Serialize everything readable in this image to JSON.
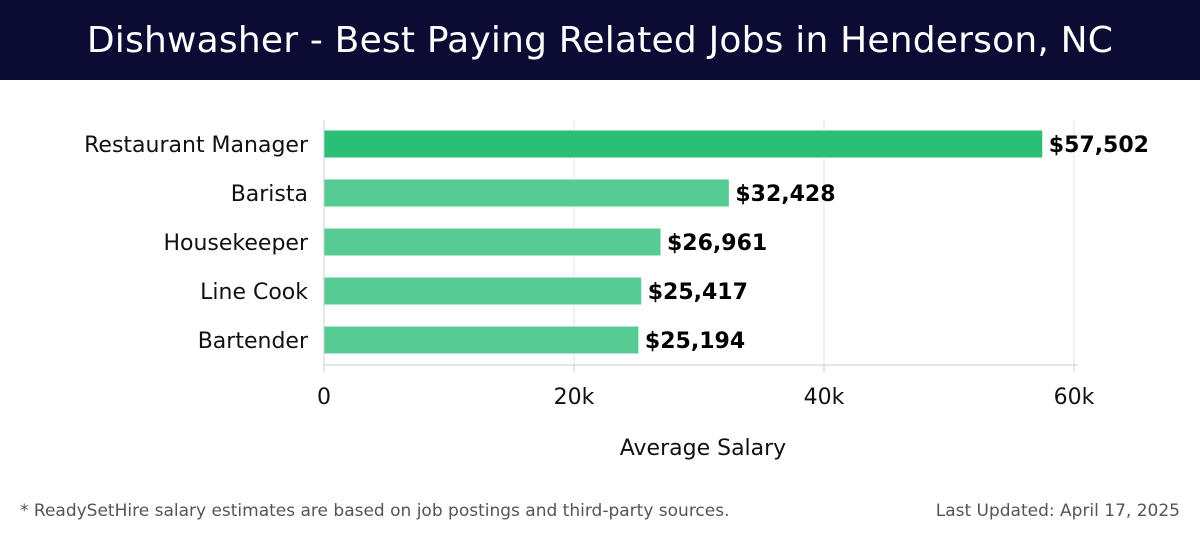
{
  "header": {
    "title": "Dishwasher - Best Paying Related Jobs in Henderson, NC"
  },
  "footer": {
    "note": "* ReadySetHire salary estimates are based on job postings and third-party sources.",
    "updated": "Last Updated: April 17, 2025"
  },
  "colors": {
    "header_bg": "#0b0b33",
    "bar_top": "#2abf76",
    "bar_other": "#56cc94"
  },
  "chart_data": {
    "type": "bar",
    "orientation": "horizontal",
    "title": "Dishwasher - Best Paying Related Jobs in Henderson, NC",
    "xlabel": "Average Salary",
    "ylabel": "",
    "categories": [
      "Restaurant Manager",
      "Barista",
      "Housekeeper",
      "Line Cook",
      "Bartender"
    ],
    "values": [
      57502,
      32428,
      26961,
      25417,
      25194
    ],
    "value_labels": [
      "$57,502",
      "$32,428",
      "$26,961",
      "$25,417",
      "$25,194"
    ],
    "xlim": [
      0,
      60000
    ],
    "xticks": [
      0,
      20000,
      40000,
      60000
    ],
    "xtick_labels": [
      "0",
      "20k",
      "40k",
      "60k"
    ],
    "grid": true
  }
}
